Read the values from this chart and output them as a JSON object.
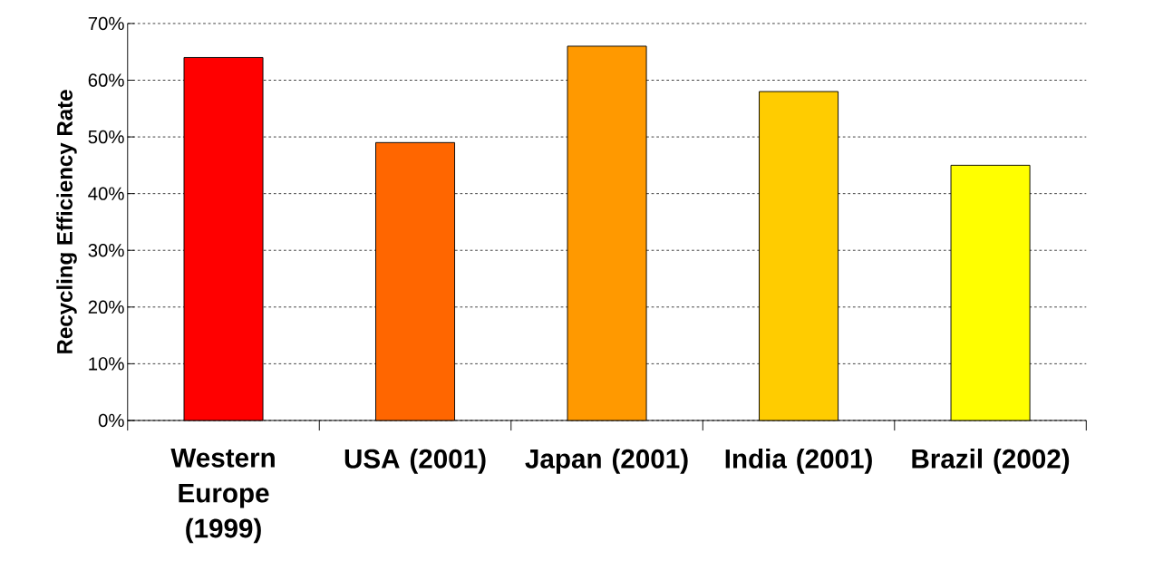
{
  "chart_data": {
    "type": "bar",
    "ylabel": "Recycling Efficiency Rate",
    "categories": [
      "Western Europe (1999)",
      "USA (2001)",
      "Japan (2001)",
      "India (2001)",
      "Brazil (2002)"
    ],
    "values": [
      64,
      49,
      66,
      58,
      45
    ],
    "colors": [
      "#ff0000",
      "#ff6600",
      "#ff9900",
      "#ffcc00",
      "#ffff00"
    ],
    "ylim": [
      0,
      70
    ],
    "yticks": [
      {
        "value": 0,
        "label": "0%"
      },
      {
        "value": 10,
        "label": "10%"
      },
      {
        "value": 20,
        "label": "20%"
      },
      {
        "value": 30,
        "label": "30%"
      },
      {
        "value": 40,
        "label": "40%"
      },
      {
        "value": 50,
        "label": "50%"
      },
      {
        "value": 60,
        "label": "60%"
      },
      {
        "value": 70,
        "label": "70%"
      }
    ],
    "grid": "y"
  }
}
